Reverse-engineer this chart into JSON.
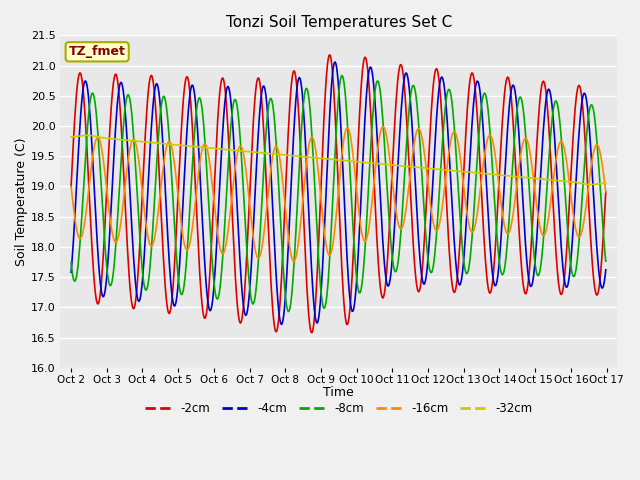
{
  "title": "Tonzi Soil Temperatures Set C",
  "xlabel": "Time",
  "ylabel": "Soil Temperature (C)",
  "ylim": [
    16.0,
    21.5
  ],
  "bg_color": "#e8e8e8",
  "fig_color": "#f0f0f0",
  "grid_color": "#ffffff",
  "annotation_text": "TZ_fmet",
  "annotation_color": "#8b0000",
  "annotation_bg": "#ffffcc",
  "annotation_border": "#aaaa00",
  "x_tick_labels": [
    "Oct 2",
    "Oct 3",
    "Oct 4",
    "Oct 5",
    "Oct 6",
    "Oct 7",
    "Oct 8",
    "Oct 9",
    "Oct 10",
    "Oct 11",
    "Oct 12",
    "Oct 13",
    "Oct 14",
    "Oct 15",
    "Oct 16",
    "Oct 17"
  ],
  "series": [
    {
      "label": "-2cm",
      "color": "#dd0000",
      "linewidth": 1.2
    },
    {
      "label": "-4cm",
      "color": "#0000cc",
      "linewidth": 1.2
    },
    {
      "label": "-8cm",
      "color": "#00aa00",
      "linewidth": 1.2
    },
    {
      "label": "-16cm",
      "color": "#ff8800",
      "linewidth": 1.2
    },
    {
      "label": "-32cm",
      "color": "#cccc00",
      "linewidth": 1.2
    }
  ]
}
